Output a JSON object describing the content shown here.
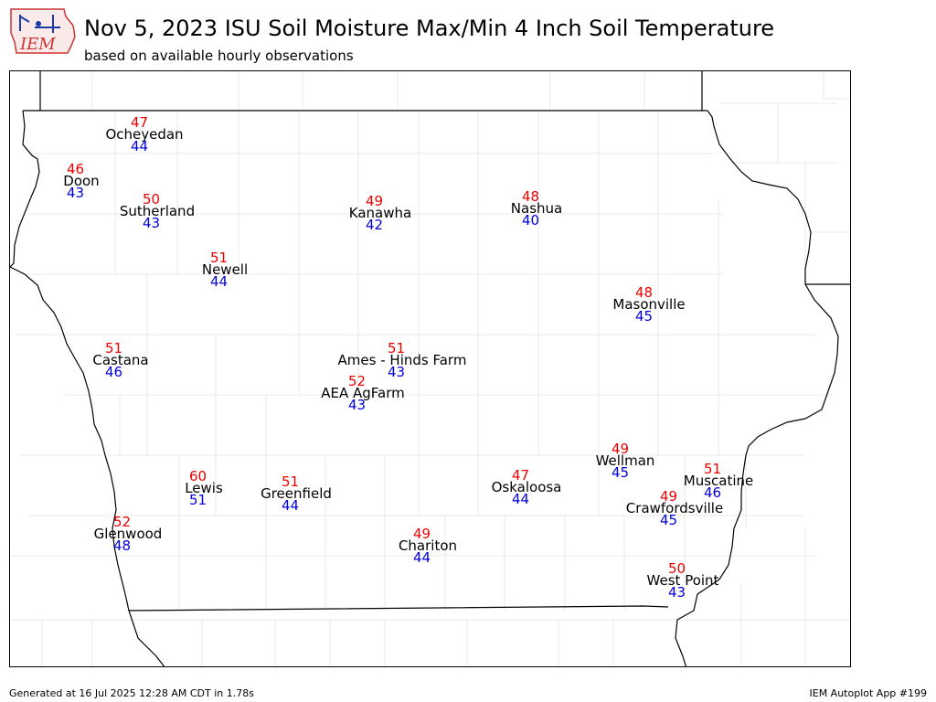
{
  "header": {
    "logo_text": "IEM",
    "title": "Nov 5, 2023 ISU Soil Moisture Max/Min 4 Inch Soil Temperature",
    "subtitle": "based on available hourly observations"
  },
  "footer": {
    "generated": "Generated at 16 Jul 2025 12:28 AM CDT in 1.78s",
    "app": "IEM Autoplot App #199"
  },
  "colors": {
    "max_temp": "#ee0000",
    "min_temp": "#0000dd",
    "station_name": "#000000",
    "state_border": "#000000",
    "county_lines": "#dddddd"
  },
  "stations": [
    {
      "name": "Ocheyedan",
      "max": "47",
      "min": "44"
    },
    {
      "name": "Doon",
      "max": "46",
      "min": "43"
    },
    {
      "name": "Sutherland",
      "max": "50",
      "min": "43"
    },
    {
      "name": "Kanawha",
      "max": "49",
      "min": "42"
    },
    {
      "name": "Nashua",
      "max": "48",
      "min": "40"
    },
    {
      "name": "Newell",
      "max": "51",
      "min": "44"
    },
    {
      "name": "Masonville",
      "max": "48",
      "min": "45"
    },
    {
      "name": "Castana",
      "max": "51",
      "min": "46"
    },
    {
      "name": "Ames - Hinds Farm",
      "max": "51",
      "min": "43"
    },
    {
      "name": "AEA AgFarm",
      "max": "52",
      "min": "43"
    },
    {
      "name": "Wellman",
      "max": "49",
      "min": "45"
    },
    {
      "name": "Muscatine",
      "max": "51",
      "min": "46"
    },
    {
      "name": "Lewis",
      "max": "60",
      "min": "51"
    },
    {
      "name": "Greenfield",
      "max": "51",
      "min": "44"
    },
    {
      "name": "Oskaloosa",
      "max": "47",
      "min": "44"
    },
    {
      "name": "Crawfordsville",
      "max": "49",
      "min": "45"
    },
    {
      "name": "Glenwood",
      "max": "52",
      "min": "48"
    },
    {
      "name": "Chariton",
      "max": "49",
      "min": "44"
    },
    {
      "name": "West Point",
      "max": "50",
      "min": "43"
    }
  ]
}
